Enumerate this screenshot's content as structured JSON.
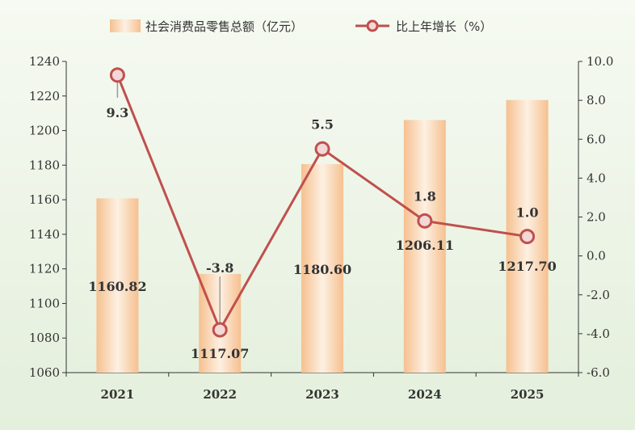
{
  "chart_data": {
    "type": "bar+line",
    "title": "",
    "categories": [
      "2021",
      "2022",
      "2023",
      "2024",
      "2025"
    ],
    "series": [
      {
        "name": "社会消费品零售总额（亿元）",
        "type": "bar",
        "axis": "left",
        "values": [
          1160.82,
          1117.07,
          1180.6,
          1206.11,
          1217.7
        ],
        "labels": [
          "1160.82",
          "1117.07",
          "1180.60",
          "1206.11",
          "1217.70"
        ]
      },
      {
        "name": "比上年增长（%）",
        "type": "line",
        "axis": "right",
        "values": [
          9.3,
          -3.8,
          5.5,
          1.8,
          1.0
        ],
        "labels": [
          "9.3",
          "-3.8",
          "5.5",
          "1.8",
          "1.0"
        ]
      }
    ],
    "y_left": {
      "min": 1060,
      "max": 1240,
      "ticks": [
        "1060",
        "1080",
        "1100",
        "1120",
        "1140",
        "1160",
        "1180",
        "1200",
        "1220",
        "1240"
      ]
    },
    "y_right": {
      "min": -6.0,
      "max": 10.0,
      "ticks": [
        "-6.0",
        "-4.0",
        "-2.0",
        "0.0",
        "2.0",
        "4.0",
        "6.0",
        "8.0",
        "10.0"
      ]
    },
    "grid": false,
    "legend_position": "top-center",
    "colors": {
      "bar_light": "#fdf0e2",
      "bar_dark": "#f6c08f",
      "line": "#c0504d",
      "marker_fill": "#f2d8d6"
    }
  }
}
